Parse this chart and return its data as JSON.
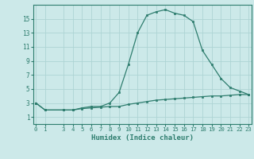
{
  "xlabel": "Humidex (Indice chaleur)",
  "x": [
    0,
    1,
    3,
    4,
    5,
    6,
    7,
    8,
    9,
    10,
    11,
    12,
    13,
    14,
    15,
    16,
    17,
    18,
    19,
    20,
    21,
    22,
    23
  ],
  "y_upper": [
    3,
    2,
    2,
    2,
    2.3,
    2.5,
    2.5,
    3.0,
    4.5,
    8.5,
    13,
    15.5,
    16,
    16.3,
    15.8,
    15.5,
    14.6,
    10.5,
    8.5,
    6.5,
    5.2,
    4.7,
    4.2
  ],
  "y_lower": [
    3,
    2,
    2,
    2,
    2.2,
    2.3,
    2.4,
    2.5,
    2.5,
    2.8,
    3.0,
    3.2,
    3.4,
    3.5,
    3.6,
    3.7,
    3.8,
    3.9,
    4.0,
    4.0,
    4.1,
    4.2,
    4.2
  ],
  "line_color": "#2e7d6e",
  "bg_color": "#cce9e9",
  "grid_color": "#aed4d4",
  "ylim": [
    0,
    17
  ],
  "yticks": [
    1,
    3,
    5,
    7,
    9,
    11,
    13,
    15
  ],
  "xlim": [
    -0.3,
    23.3
  ],
  "xticks": [
    0,
    1,
    3,
    4,
    5,
    6,
    7,
    8,
    9,
    10,
    11,
    12,
    13,
    14,
    15,
    16,
    17,
    18,
    19,
    20,
    21,
    22,
    23
  ],
  "tick_fontsize": 5.2,
  "xlabel_fontsize": 6.5
}
